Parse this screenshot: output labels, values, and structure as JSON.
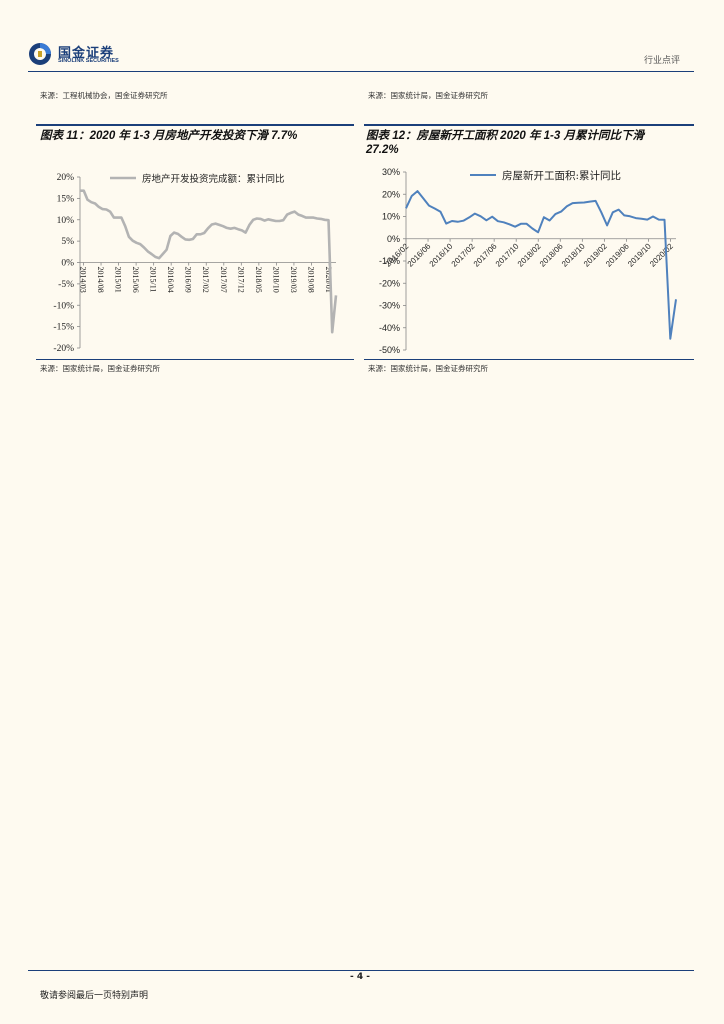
{
  "header": {
    "company_cn": "国金证券",
    "company_en": "SINOLINK SECURITIES",
    "section": "行业点评"
  },
  "top_sources": {
    "left": "来源：工程机械协会，国金证券研究所",
    "right": "来源：国家统计局，国金证券研究所"
  },
  "figures": {
    "left_title": "图表 11：2020 年 1-3 月房地产开发投资下滑 7.7%",
    "right_title_1": "图表 12：房屋新开工面积 2020 年 1-3 月累计同比下滑",
    "right_title_2": "27.2%",
    "left_source": "来源：国家统计局，国金证券研究所",
    "right_source": "来源：国家统计局，国金证券研究所"
  },
  "footer": {
    "page": "- 4 -",
    "note": "敬请参阅最后一页特别声明"
  },
  "chart_data": [
    {
      "type": "line",
      "legend": "房地产开发投资完成额：累计同比",
      "color": "#b3b3b3",
      "ylim": [
        -20,
        20
      ],
      "yticks": [
        "20%",
        "15%",
        "10%",
        "5%",
        "0%",
        "-5%",
        "-10%",
        "-15%",
        "-20%"
      ],
      "xticks": [
        "2014/03",
        "2014/08",
        "2015/01",
        "2015/06",
        "2015/11",
        "2016/04",
        "2016/09",
        "2017/02",
        "2017/07",
        "2017/12",
        "2018/05",
        "2018/10",
        "2019/03",
        "2019/08",
        "2020/01"
      ],
      "x_start": "2014/02",
      "x_end": "2020/03",
      "values": [
        16.8,
        16.8,
        14.7,
        14.1,
        13.8,
        13.0,
        12.5,
        12.4,
        11.9,
        10.5,
        10.5,
        10.5,
        8.5,
        6.0,
        5.1,
        4.6,
        4.3,
        3.5,
        2.6,
        2.0,
        1.3,
        1.0,
        2.0,
        3.0,
        6.2,
        7.0,
        6.7,
        6.0,
        5.4,
        5.3,
        5.5,
        6.6,
        6.6,
        6.9,
        8.0,
        8.9,
        9.1,
        8.8,
        8.5,
        8.1,
        7.9,
        8.1,
        7.8,
        7.5,
        7.0,
        8.8,
        10.0,
        10.3,
        10.2,
        9.8,
        10.1,
        9.9,
        9.7,
        9.7,
        9.9,
        11.2,
        11.6,
        11.9,
        11.2,
        10.9,
        10.5,
        10.5,
        10.5,
        10.3,
        10.2,
        10.0,
        9.9,
        -16.3,
        -7.7
      ]
    },
    {
      "type": "line",
      "legend": "房屋新开工面积:累计同比",
      "color": "#4f81bd",
      "ylim": [
        -50,
        30
      ],
      "yticks": [
        "30%",
        "20%",
        "10%",
        "0%",
        "-10%",
        "-20%",
        "-30%",
        "-40%",
        "-50%"
      ],
      "xticks": [
        "2016/02",
        "2016/06",
        "2016/10",
        "2017/02",
        "2017/06",
        "2017/10",
        "2018/02",
        "2018/06",
        "2018/10",
        "2019/02",
        "2019/06",
        "2019/10",
        "2020/02"
      ],
      "x_start": "2016/02",
      "x_end": "2020/03",
      "values": [
        13.7,
        19.2,
        21.4,
        18.2,
        14.9,
        13.6,
        12.1,
        6.8,
        8.0,
        7.6,
        8.1,
        9.6,
        11.3,
        10.1,
        8.3,
        9.9,
        7.9,
        7.4,
        6.5,
        5.4,
        6.7,
        6.7,
        4.6,
        2.9,
        9.7,
        8.2,
        11.1,
        12.2,
        14.6,
        16.0,
        16.2,
        16.3,
        16.7,
        17.0,
        11.9,
        6.0,
        11.9,
        13.1,
        10.5,
        10.1,
        9.3,
        9.0,
        8.6,
        10.0,
        8.6,
        8.5,
        -44.9,
        -27.2
      ]
    }
  ]
}
